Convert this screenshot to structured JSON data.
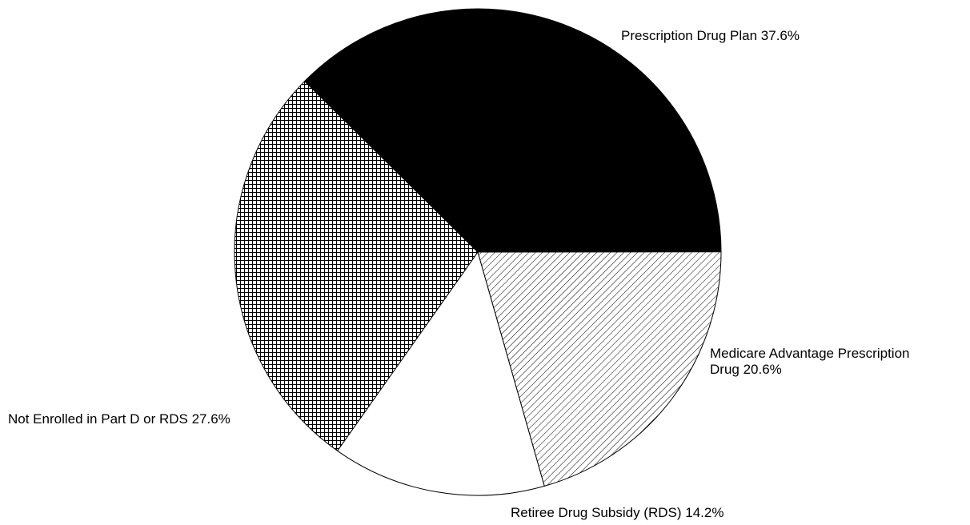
{
  "chart_data": {
    "type": "pie",
    "title": "",
    "slices": [
      {
        "label_lines": [
          "Prescription Drug Plan 37.6%"
        ],
        "value": 37.6,
        "fill": "solid-black"
      },
      {
        "label_lines": [
          "Medicare Advantage Prescription",
          "Drug 20.6%"
        ],
        "value": 20.6,
        "fill": "diagonal-hatch"
      },
      {
        "label_lines": [
          "Retiree Drug Subsidy (RDS) 14.2%"
        ],
        "value": 14.2,
        "fill": "white"
      },
      {
        "label_lines": [
          "Not Enrolled in Part D or RDS 27.6%"
        ],
        "value": 27.6,
        "fill": "crosshatch"
      }
    ],
    "colors": {
      "stroke": "#000000",
      "solid": "#000000",
      "background": "#ffffff"
    }
  }
}
